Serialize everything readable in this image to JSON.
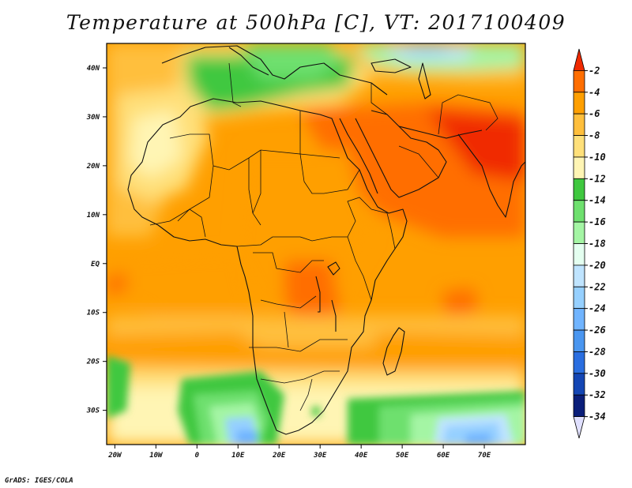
{
  "title": "Temperature at 500hPa [C], VT: 2017100409",
  "footer": "GrADS: IGES/COLA",
  "map": {
    "lon_range": [
      -22,
      80
    ],
    "lat_range": [
      -37,
      45
    ],
    "lon_ticks": [
      {
        "value": -20,
        "label": "20W"
      },
      {
        "value": -10,
        "label": "10W"
      },
      {
        "value": 0,
        "label": "0"
      },
      {
        "value": 10,
        "label": "10E"
      },
      {
        "value": 20,
        "label": "20E"
      },
      {
        "value": 30,
        "label": "30E"
      },
      {
        "value": 40,
        "label": "40E"
      },
      {
        "value": 50,
        "label": "50E"
      },
      {
        "value": 60,
        "label": "60E"
      },
      {
        "value": 70,
        "label": "70E"
      }
    ],
    "lat_ticks": [
      {
        "value": 40,
        "label": "40N"
      },
      {
        "value": 30,
        "label": "30N"
      },
      {
        "value": 20,
        "label": "20N"
      },
      {
        "value": 10,
        "label": "10N"
      },
      {
        "value": 0,
        "label": "EQ"
      },
      {
        "value": -10,
        "label": "10S"
      },
      {
        "value": -20,
        "label": "20S"
      },
      {
        "value": -30,
        "label": "30S"
      }
    ]
  },
  "colorbar": {
    "levels": [
      "-2",
      "-4",
      "-6",
      "-8",
      "-10",
      "-12",
      "-14",
      "-16",
      "-18",
      "-20",
      "-22",
      "-24",
      "-26",
      "-28",
      "-30",
      "-32",
      "-34"
    ],
    "colors": [
      "#f02a00",
      "#ff6e00",
      "#ff9f00",
      "#ffbf3c",
      "#ffe07a",
      "#fff5b4",
      "#3fc83f",
      "#6ee06e",
      "#a4f5a4",
      "#e4fff0",
      "#bfe4ff",
      "#96d0ff",
      "#70b4ff",
      "#4a96f0",
      "#2a6ee0",
      "#1446b4",
      "#0a1e7a",
      "#e0e0ff"
    ]
  }
}
